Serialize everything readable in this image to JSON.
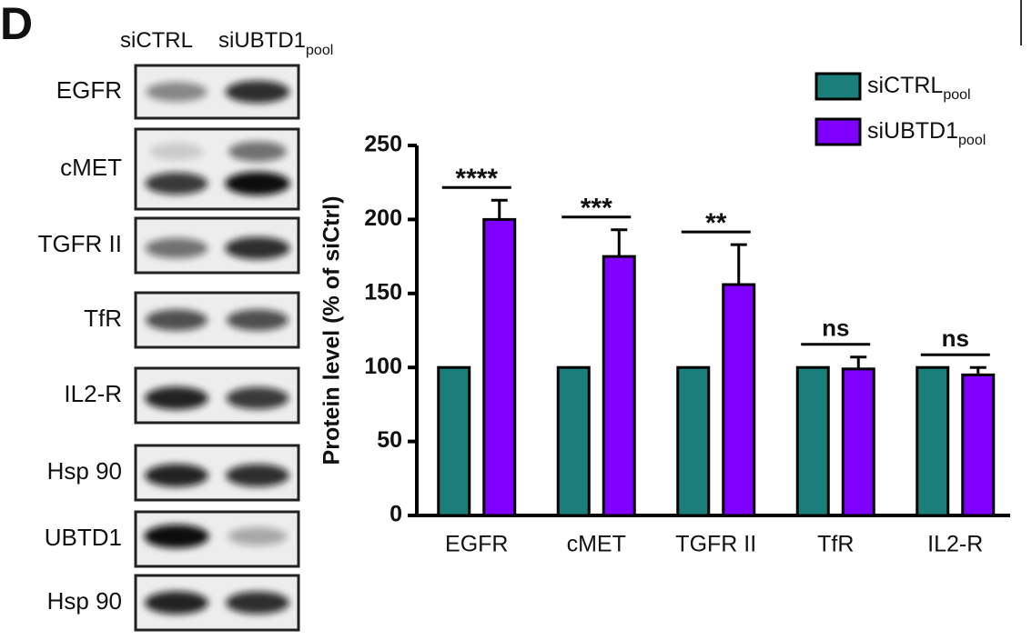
{
  "panel_label": "D",
  "blot": {
    "columns": [
      {
        "label": "siCTRL"
      },
      {
        "label": "siUBTD1",
        "subscript": "pool"
      }
    ],
    "rows": [
      "EGFR",
      "cMET",
      "TGFR II",
      "TfR",
      "IL2-R",
      "Hsp 90",
      "UBTD1",
      "Hsp 90"
    ]
  },
  "chart_data": {
    "type": "bar",
    "y_label": "Protein level (% of siCtrl)",
    "categories": [
      "EGFR",
      "cMET",
      "TGFR II",
      "TfR",
      "IL2-R"
    ],
    "series": [
      {
        "name": "siCTRL",
        "name_subscript": "pool",
        "color": "#1a7f7a",
        "values": [
          100,
          100,
          100,
          100,
          100
        ]
      },
      {
        "name": "siUBTD1",
        "name_subscript": "pool",
        "color": "#8000ff",
        "values": [
          200,
          175,
          156,
          99,
          95
        ],
        "errors": [
          13,
          18,
          27,
          8,
          5
        ]
      }
    ],
    "significance": [
      "****",
      "***",
      "**",
      "ns",
      "ns"
    ],
    "ylim": [
      0,
      250
    ],
    "yticks": [
      0,
      50,
      100,
      150,
      200,
      250
    ],
    "legend": "upper-right"
  }
}
